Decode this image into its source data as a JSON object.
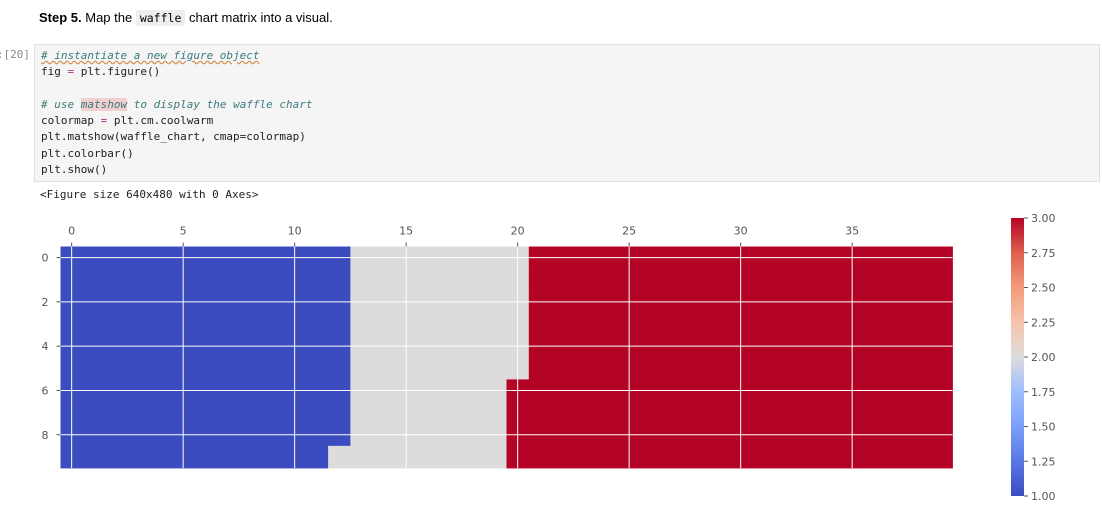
{
  "markdown": {
    "step_label": "Step 5.",
    "text_before": " Map the ",
    "code_word": "waffle",
    "text_after": " chart matrix into a visual."
  },
  "cell": {
    "prompt": "[20]:",
    "code": {
      "line1": "# instantiate a new figure object",
      "line2_a": "fig",
      "line2_op": " = ",
      "line2_b": "plt.figure()",
      "line4_a": "# use ",
      "line4_hl": "matshow",
      "line4_b": " to display the waffle chart",
      "line5_a": "colormap",
      "line5_op": " = ",
      "line5_b": "plt.cm.coolwarm",
      "line6": "plt.matshow(waffle_chart, cmap=colormap)",
      "line7": "plt.colorbar()",
      "line8": "plt.show()"
    },
    "output_text": "<Figure size 640x480 with 0 Axes>"
  },
  "colors": {
    "blue": "#3b4cc0",
    "gray": "#dddcdb",
    "red": "#b40426"
  },
  "chart_data": {
    "type": "heatmap",
    "rows": 10,
    "cols": 40,
    "grid": true,
    "colormap": "coolwarm",
    "category_boundaries": [
      {
        "row": 0,
        "blue_end": 12,
        "gray_end": 20
      },
      {
        "row": 1,
        "blue_end": 12,
        "gray_end": 20
      },
      {
        "row": 2,
        "blue_end": 12,
        "gray_end": 20
      },
      {
        "row": 3,
        "blue_end": 12,
        "gray_end": 20
      },
      {
        "row": 4,
        "blue_end": 12,
        "gray_end": 20
      },
      {
        "row": 5,
        "blue_end": 12,
        "gray_end": 20
      },
      {
        "row": 6,
        "blue_end": 12,
        "gray_end": 19
      },
      {
        "row": 7,
        "blue_end": 12,
        "gray_end": 19
      },
      {
        "row": 8,
        "blue_end": 12,
        "gray_end": 19
      },
      {
        "row": 9,
        "blue_end": 11,
        "gray_end": 19
      }
    ],
    "x_ticks": [
      0,
      5,
      10,
      15,
      20,
      25,
      30,
      35
    ],
    "y_ticks": [
      0,
      2,
      4,
      6,
      8
    ],
    "colorbar_ticks": [
      "1.00",
      "1.25",
      "1.50",
      "1.75",
      "2.00",
      "2.25",
      "2.50",
      "2.75",
      "3.00"
    ],
    "colorbar_range": [
      1.0,
      3.0
    ]
  }
}
